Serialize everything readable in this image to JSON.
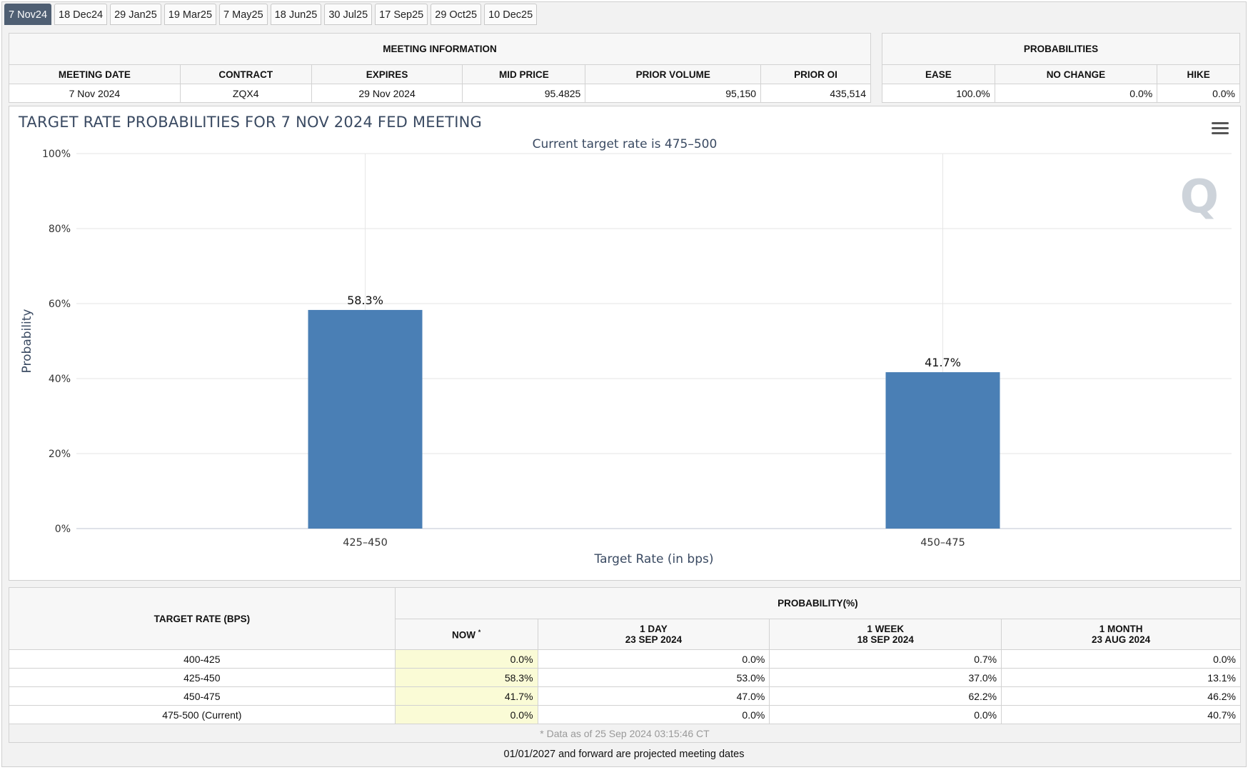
{
  "tabs": [
    "7 Nov24",
    "18 Dec24",
    "29 Jan25",
    "19 Mar25",
    "7 May25",
    "18 Jun25",
    "30 Jul25",
    "17 Sep25",
    "29 Oct25",
    "10 Dec25"
  ],
  "meeting_info": {
    "title": "MEETING INFORMATION",
    "headers": [
      "MEETING DATE",
      "CONTRACT",
      "EXPIRES",
      "MID PRICE",
      "PRIOR VOLUME",
      "PRIOR OI"
    ],
    "values": [
      "7 Nov 2024",
      "ZQX4",
      "29 Nov 2024",
      "95.4825",
      "95,150",
      "435,514"
    ]
  },
  "probabilities": {
    "title": "PROBABILITIES",
    "headers": [
      "EASE",
      "NO CHANGE",
      "HIKE"
    ],
    "values": [
      "100.0%",
      "0.0%",
      "0.0%"
    ]
  },
  "chart": {
    "title": "TARGET RATE PROBABILITIES FOR 7 NOV 2024 FED MEETING",
    "subtitle": "Current target rate is 475–500",
    "watermark": "Q"
  },
  "chart_data": {
    "type": "bar",
    "categories": [
      "425–450",
      "450–475"
    ],
    "values": [
      58.3,
      41.7
    ],
    "data_labels": [
      "58.3%",
      "41.7%"
    ],
    "title": "TARGET RATE PROBABILITIES FOR 7 NOV 2024 FED MEETING",
    "subtitle": "Current target rate is 475–500",
    "xlabel": "Target Rate (in bps)",
    "ylabel": "Probability",
    "ylim": [
      0,
      100
    ],
    "yticks": [
      "0%",
      "20%",
      "40%",
      "60%",
      "80%",
      "100%"
    ],
    "grid": true,
    "bar_color": "#4a7fb5"
  },
  "prob_table": {
    "rate_header": "TARGET RATE (BPS)",
    "group_header": "PROBABILITY(%)",
    "now_header": "NOW",
    "now_mark": "*",
    "col_1day": "1 DAY",
    "col_1day_date": "23 SEP 2024",
    "col_1week": "1 WEEK",
    "col_1week_date": "18 SEP 2024",
    "col_1month": "1 MONTH",
    "col_1month_date": "23 AUG 2024",
    "rows": [
      {
        "rate": "400-425",
        "now": "0.0%",
        "d1": "0.0%",
        "w1": "0.7%",
        "m1": "0.0%"
      },
      {
        "rate": "425-450",
        "now": "58.3%",
        "d1": "53.0%",
        "w1": "37.0%",
        "m1": "13.1%"
      },
      {
        "rate": "450-475",
        "now": "41.7%",
        "d1": "47.0%",
        "w1": "62.2%",
        "m1": "46.2%"
      },
      {
        "rate": "475-500 (Current)",
        "now": "0.0%",
        "d1": "0.0%",
        "w1": "0.0%",
        "m1": "40.7%"
      }
    ],
    "as_of": "* Data as of 25 Sep 2024 03:15:46 CT"
  },
  "footer_note": "01/01/2027 and forward are projected meeting dates"
}
